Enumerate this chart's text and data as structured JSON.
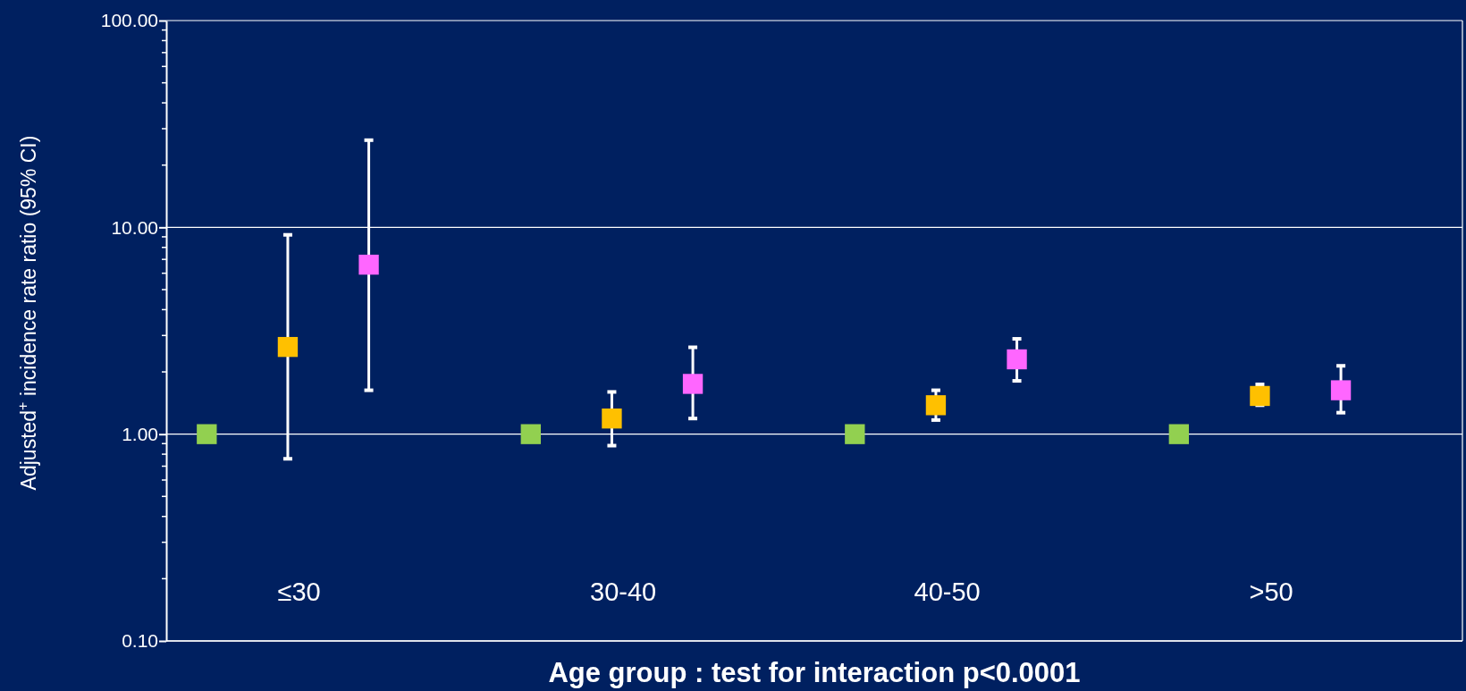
{
  "chart_data": {
    "type": "scatter",
    "xlabel": "Age group : test for interaction p<0.0001",
    "ylabel": "Adjusted$^{+}$ incidence rate ratio (95% CI)",
    "categories": [
      "≤30",
      "30-40",
      "40-50",
      ">50"
    ],
    "log": "y",
    "ylim": [
      0.1,
      100
    ],
    "yticks": [
      {
        "value": 0.1,
        "label": "0.10"
      },
      {
        "value": 1,
        "label": "1.00"
      },
      {
        "value": 10,
        "label": "10.00"
      },
      {
        "value": 100,
        "label": "100.00"
      }
    ],
    "grid": "y",
    "marker": "square",
    "series": [
      {
        "color": "#92d050",
        "values": [
          1,
          1,
          1,
          1
        ]
      },
      {
        "color": "#ffc000",
        "values": [
          2.64,
          1.19,
          1.38,
          1.53
        ],
        "errors": [
          [
            0.76,
            9.2
          ],
          [
            0.88,
            1.6
          ],
          [
            1.17,
            1.63
          ],
          [
            1.38,
            1.74
          ]
        ]
      },
      {
        "color": "#ff66ff",
        "values": [
          6.6,
          1.75,
          2.3,
          1.63
        ],
        "errors": [
          [
            1.63,
            26.4
          ],
          [
            1.19,
            2.63
          ],
          [
            1.81,
            2.89
          ],
          [
            1.27,
            2.14
          ]
        ]
      }
    ]
  }
}
